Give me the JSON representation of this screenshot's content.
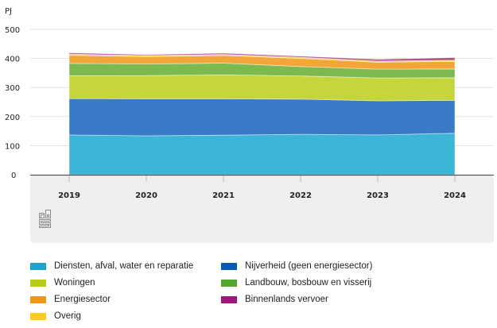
{
  "chart_data": {
    "type": "area",
    "stacked": true,
    "title": "",
    "unit_label": "PJ",
    "xlabel": "",
    "ylabel": "PJ",
    "x": [
      "2019",
      "2020",
      "2021",
      "2022",
      "2023",
      "2024"
    ],
    "y_ticks": [
      "0",
      "100",
      "200",
      "300",
      "400",
      "500"
    ],
    "ylim": [
      0,
      500
    ],
    "grid": true,
    "legend_position": "bottom",
    "series": [
      {
        "name": "Diensten, afval, water en reparatie",
        "color": "#3db5d9",
        "values": [
          137,
          134,
          136,
          139,
          137,
          143
        ]
      },
      {
        "name": "Nijverheid (geen energiesector)",
        "color": "#3a7bc8",
        "values": [
          125,
          127,
          125,
          121,
          117,
          113
        ]
      },
      {
        "name": "Woningen",
        "color": "#c4d63c",
        "values": [
          79,
          80,
          83,
          80,
          79,
          78
        ]
      },
      {
        "name": "Landbouw, bosbouw en visserij",
        "color": "#7cb94e",
        "values": [
          42,
          40,
          40,
          32,
          30,
          30
        ]
      },
      {
        "name": "Energiesector",
        "color": "#f2a63a",
        "values": [
          28,
          25,
          26,
          28,
          24,
          26
        ]
      },
      {
        "name": "Overig",
        "color": "#f7cf46",
        "values": [
          4,
          4,
          4,
          4,
          4,
          4
        ]
      },
      {
        "name": "Binnenlands vervoer",
        "color": "#b04a96",
        "values": [
          4,
          3,
          4,
          4,
          6,
          9
        ]
      }
    ]
  },
  "legend": {
    "items": [
      {
        "label": "Diensten, afval, water en reparatie",
        "color": "#1fa3c9"
      },
      {
        "label": "Nijverheid (geen energiesector)",
        "color": "#0a5bb8"
      },
      {
        "label": "Woningen",
        "color": "#b5cc1a"
      },
      {
        "label": "Landbouw, bosbouw en visserij",
        "color": "#53a62d"
      },
      {
        "label": "Energiesector",
        "color": "#ef9619"
      },
      {
        "label": "Binnenlands vervoer",
        "color": "#a0157e"
      },
      {
        "label": "Overig",
        "color": "#fdcb1a"
      }
    ]
  },
  "logo": {
    "name": "cbs"
  }
}
